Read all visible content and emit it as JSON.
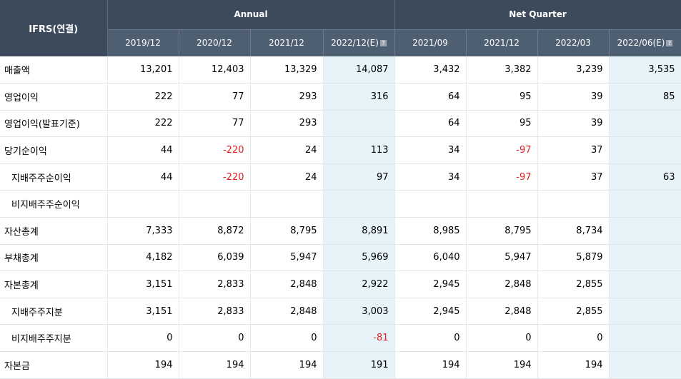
{
  "header": {
    "corner": "IFRS(연결)",
    "groups": [
      "Annual",
      "Net Quarter"
    ],
    "columns": [
      "2019/12",
      "2020/12",
      "2021/12",
      "2022/12(E)",
      "2021/09",
      "2021/12",
      "2022/03",
      "2022/06(E)"
    ],
    "info_icon": "?"
  },
  "rows": [
    {
      "label": "매출액",
      "values": [
        "13,201",
        "12,403",
        "13,329",
        "14,087",
        "3,432",
        "3,382",
        "3,239",
        "3,535"
      ]
    },
    {
      "label": "영업이익",
      "values": [
        "222",
        "77",
        "293",
        "316",
        "64",
        "95",
        "39",
        "85"
      ]
    },
    {
      "label": "영업이익(발표기준)",
      "values": [
        "222",
        "77",
        "293",
        "",
        "64",
        "95",
        "39",
        ""
      ]
    },
    {
      "label": "당기순이익",
      "values": [
        "44",
        "-220",
        "24",
        "113",
        "34",
        "-97",
        "37",
        ""
      ]
    },
    {
      "label": "지배주주순이익",
      "values": [
        "44",
        "-220",
        "24",
        "97",
        "34",
        "-97",
        "37",
        "63"
      ]
    },
    {
      "label": "비지배주주순이익",
      "values": [
        "",
        "",
        "",
        "",
        "",
        "",
        "",
        ""
      ]
    },
    {
      "label": "자산총계",
      "values": [
        "7,333",
        "8,872",
        "8,795",
        "8,891",
        "8,985",
        "8,795",
        "8,734",
        ""
      ]
    },
    {
      "label": "부채총계",
      "values": [
        "4,182",
        "6,039",
        "5,947",
        "5,969",
        "6,040",
        "5,947",
        "5,879",
        ""
      ]
    },
    {
      "label": "자본총계",
      "values": [
        "3,151",
        "2,833",
        "2,848",
        "2,922",
        "2,945",
        "2,848",
        "2,855",
        ""
      ]
    },
    {
      "label": "지배주주지분",
      "values": [
        "3,151",
        "2,833",
        "2,848",
        "3,003",
        "2,945",
        "2,848",
        "2,855",
        ""
      ]
    },
    {
      "label": "비지배주주지분",
      "values": [
        "0",
        "0",
        "0",
        "-81",
        "0",
        "0",
        "0",
        ""
      ]
    },
    {
      "label": "자본금",
      "values": [
        "194",
        "194",
        "194",
        "191",
        "194",
        "194",
        "194",
        ""
      ]
    }
  ],
  "sub_rows": [
    4,
    5,
    9,
    10
  ],
  "estimate_columns": [
    3,
    7
  ],
  "colors": {
    "header_bg": "#3c4a5c",
    "subheader_bg": "#4f5f72",
    "estimate_bg": "#e6f3f8",
    "negative": "#e02020"
  }
}
